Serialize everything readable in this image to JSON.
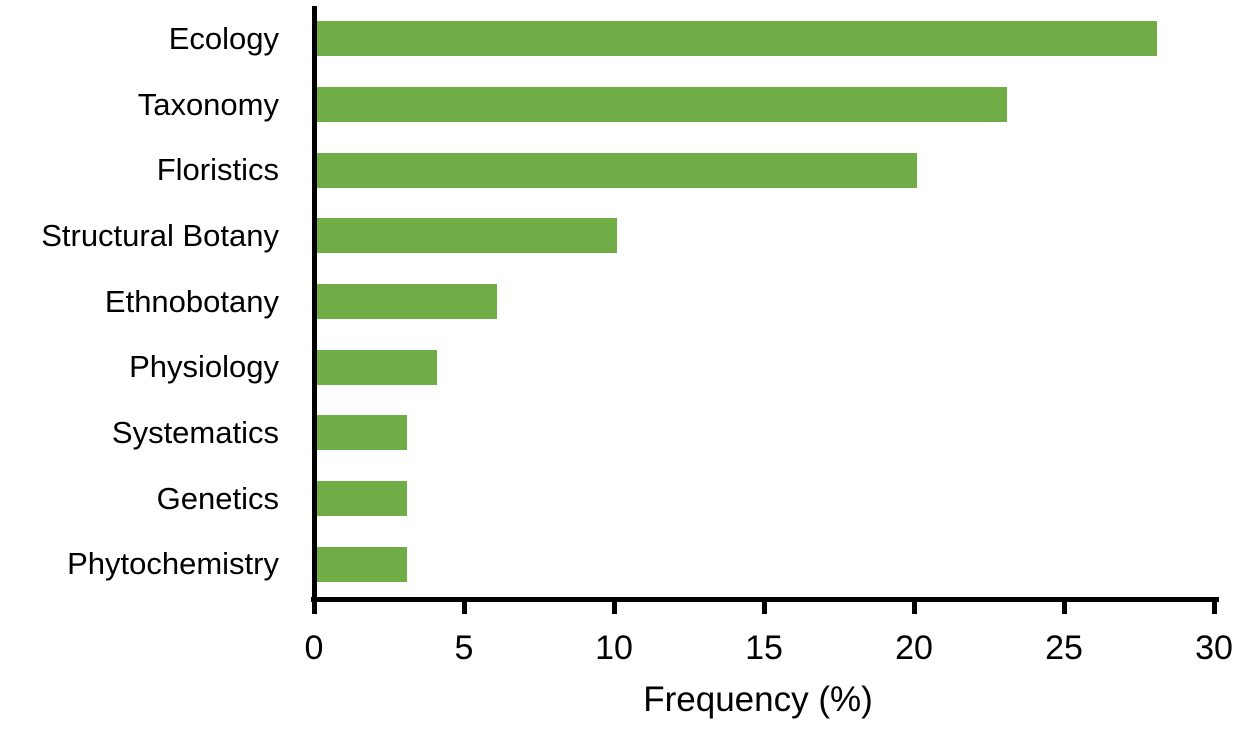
{
  "chart_data": {
    "type": "bar",
    "orientation": "horizontal",
    "title": "",
    "xlabel": "Frequency (%)",
    "ylabel": "",
    "categories": [
      "Ecology",
      "Taxonomy",
      "Floristics",
      "Structural Botany",
      "Ethnobotany",
      "Physiology",
      "Systematics",
      "Genetics",
      "Phytochemistry"
    ],
    "values": [
      28,
      23,
      20,
      10,
      6,
      4,
      3,
      3,
      3
    ],
    "xlim": [
      0,
      30
    ],
    "xticks": [
      0,
      5,
      10,
      15,
      20,
      25,
      30
    ],
    "xtick_labels": [
      "0",
      "5",
      "10",
      "15",
      "20",
      "25",
      "30"
    ],
    "grid": false,
    "legend": null,
    "colors": {
      "bar_fill": "#70AD47",
      "axis": "#000000",
      "text": "#000000",
      "background": "#FFFFFF"
    }
  }
}
